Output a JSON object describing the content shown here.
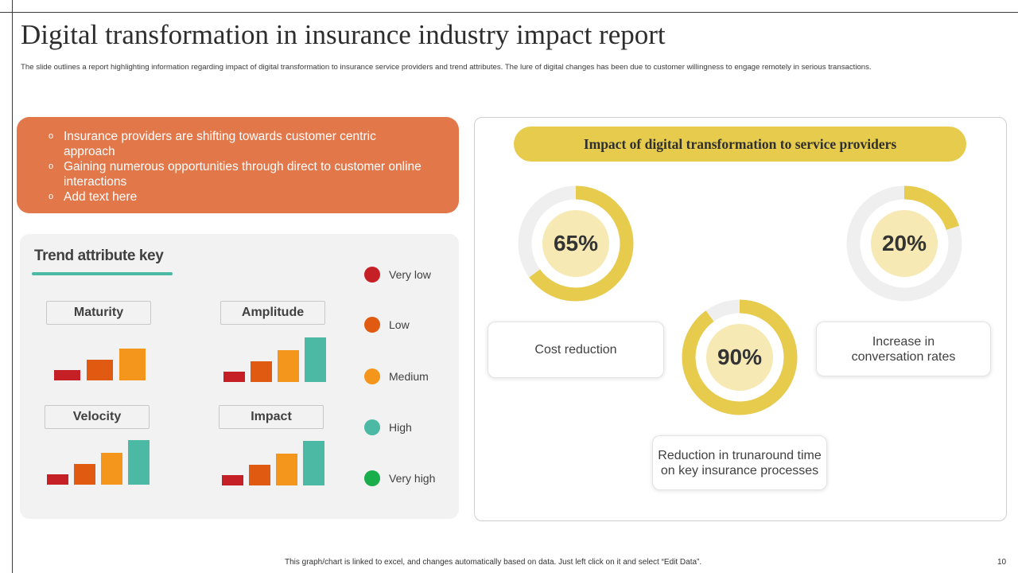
{
  "slide": {
    "title": "Digital transformation in insurance industry impact report",
    "subtitle": "The slide outlines a report highlighting  information regarding impact of digital transformation to insurance service providers and trend attributes. The lure of digital changes has been due to customer willingness to engage remotely in serious transactions.",
    "footer_note": "This graph/chart is linked to excel, and changes automatically based on data. Just left click on it and select “Edit Data”.",
    "page_number": "10"
  },
  "bullet_box": {
    "color": "#e2774a",
    "bullet_symbol": "o",
    "bullets": [
      "Insurance  providers are shifting towards customer centric approach",
      "Gaining numerous  opportunities through  direct to customer online interactions",
      "Add text here"
    ]
  },
  "trend_panel": {
    "title": "Trend attribute key",
    "accent_color": "#4bb9a3",
    "metrics": [
      {
        "label": "Maturity",
        "levels": [
          1,
          2,
          3
        ]
      },
      {
        "label": "Amplitude",
        "levels": [
          1,
          2,
          3,
          4
        ]
      },
      {
        "label": "Velocity",
        "levels": [
          1,
          2,
          3,
          4
        ]
      },
      {
        "label": "Impact",
        "levels": [
          1,
          2,
          3,
          4
        ]
      }
    ],
    "legend": [
      {
        "label": "Very low",
        "color": "#c62027"
      },
      {
        "label": "Low",
        "color": "#e05a12"
      },
      {
        "label": "Medium",
        "color": "#f4951c"
      },
      {
        "label": "High",
        "color": "#4bb9a3"
      },
      {
        "label": "Very high",
        "color": "#1aad4b"
      }
    ]
  },
  "impact_panel": {
    "heading": "Impact of digital transformation to service providers",
    "ring_color": "#e6cb4c",
    "track_color": "#efefef",
    "metrics": [
      {
        "value": "65%",
        "percent": 65,
        "label": "Cost reduction"
      },
      {
        "value": "20%",
        "percent": 20,
        "label": "Increase in conversation rates"
      },
      {
        "value": "90%",
        "percent": 90,
        "label": "Reduction in trunaround time on key insurance processes"
      }
    ]
  }
}
